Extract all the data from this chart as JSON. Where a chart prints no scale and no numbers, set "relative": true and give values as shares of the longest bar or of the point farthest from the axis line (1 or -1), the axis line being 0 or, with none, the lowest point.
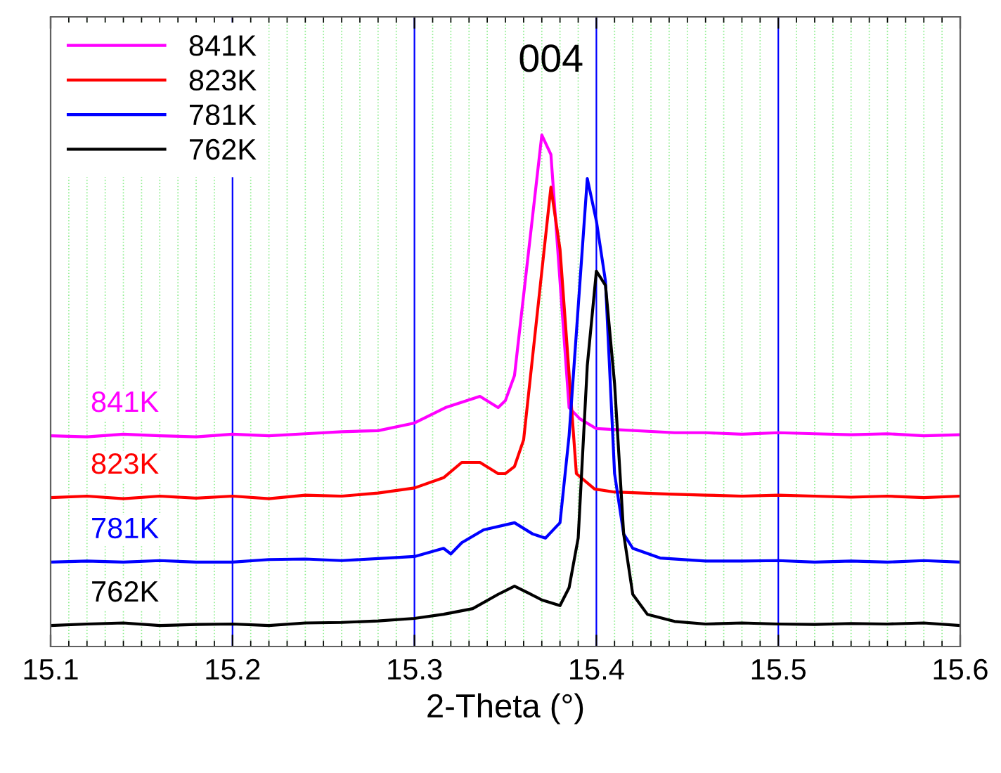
{
  "chart_data": {
    "type": "line",
    "relative": true,
    "xlabel": "2-Theta (°)",
    "xlim": [
      15.1,
      15.6
    ],
    "xticks": [
      15.1,
      {
        "value": 15.11,
        "label": null
      },
      {
        "value": 15.12,
        "label": null
      },
      {
        "value": 15.13,
        "label": null
      },
      {
        "value": 15.14,
        "label": null
      },
      {
        "value": 15.15,
        "label": null
      },
      {
        "value": 15.16,
        "label": null
      },
      {
        "value": 15.17,
        "label": null
      },
      {
        "value": 15.18,
        "label": null
      },
      {
        "value": 15.19,
        "label": null
      },
      15.2,
      {
        "value": 15.21,
        "label": null
      },
      {
        "value": 15.22,
        "label": null
      },
      {
        "value": 15.23,
        "label": null
      },
      {
        "value": 15.24,
        "label": null
      },
      {
        "value": 15.25,
        "label": null
      },
      {
        "value": 15.26,
        "label": null
      },
      {
        "value": 15.27,
        "label": null
      },
      {
        "value": 15.28,
        "label": null
      },
      {
        "value": 15.29,
        "label": null
      },
      15.3,
      {
        "value": 15.31,
        "label": null
      },
      {
        "value": 15.32,
        "label": null
      },
      {
        "value": 15.33,
        "label": null
      },
      {
        "value": 15.34,
        "label": null
      },
      {
        "value": 15.35,
        "label": null
      },
      {
        "value": 15.36,
        "label": null
      },
      {
        "value": 15.37,
        "label": null
      },
      {
        "value": 15.38,
        "label": null
      },
      {
        "value": 15.39,
        "label": null
      },
      15.4,
      {
        "value": 15.41,
        "label": null
      },
      {
        "value": 15.42,
        "label": null
      },
      {
        "value": 15.43,
        "label": null
      },
      {
        "value": 15.44,
        "label": null
      },
      {
        "value": 15.45,
        "label": null
      },
      {
        "value": 15.46,
        "label": null
      },
      {
        "value": 15.47,
        "label": null
      },
      {
        "value": 15.48,
        "label": null
      },
      {
        "value": 15.49,
        "label": null
      },
      15.5,
      {
        "value": 15.51,
        "label": null
      },
      {
        "value": 15.52,
        "label": null
      },
      {
        "value": 15.53,
        "label": null
      },
      {
        "value": 15.54,
        "label": null
      },
      {
        "value": 15.55,
        "label": null
      },
      {
        "value": 15.56,
        "label": null
      },
      {
        "value": 15.57,
        "label": null
      },
      {
        "value": 15.58,
        "label": null
      },
      {
        "value": 15.59,
        "label": null
      },
      15.6
    ],
    "tick_labels": "x",
    "grid": "x",
    "legend": "top left",
    "line_style": "solid",
    "marker": "none",
    "annotations": [
      "004"
    ],
    "series": [
      {
        "name": "841K",
        "color": "#ff00ff",
        "x": [
          15.1,
          15.12,
          15.14,
          15.16,
          15.18,
          15.2,
          15.22,
          15.24,
          15.26,
          15.28,
          15.3,
          15.317,
          15.336,
          15.346,
          15.35,
          15.355,
          15.37,
          15.375,
          15.385,
          15.391,
          15.4,
          15.443,
          15.46,
          15.48,
          15.5,
          15.52,
          15.54,
          15.56,
          15.58,
          15.6
        ],
        "values": [
          0.412,
          0.41,
          0.415,
          0.412,
          0.41,
          0.415,
          0.412,
          0.416,
          0.42,
          0.422,
          0.437,
          0.467,
          0.489,
          0.467,
          0.481,
          0.53,
          1.0,
          0.962,
          0.467,
          0.445,
          0.426,
          0.418,
          0.418,
          0.415,
          0.418,
          0.416,
          0.414,
          0.416,
          0.412,
          0.414
        ]
      },
      {
        "name": "823K",
        "color": "#ff0000",
        "x": [
          15.1,
          15.12,
          15.14,
          15.16,
          15.18,
          15.2,
          15.22,
          15.24,
          15.26,
          15.28,
          15.3,
          15.316,
          15.326,
          15.336,
          15.346,
          15.35,
          15.355,
          15.36,
          15.375,
          15.38,
          15.389,
          15.399,
          15.41,
          15.44,
          15.46,
          15.48,
          15.5,
          15.52,
          15.54,
          15.56,
          15.58,
          15.6
        ],
        "values": [
          0.291,
          0.294,
          0.289,
          0.294,
          0.29,
          0.294,
          0.289,
          0.296,
          0.294,
          0.3,
          0.31,
          0.33,
          0.36,
          0.36,
          0.338,
          0.338,
          0.352,
          0.404,
          0.898,
          0.777,
          0.338,
          0.308,
          0.302,
          0.298,
          0.296,
          0.294,
          0.296,
          0.294,
          0.292,
          0.294,
          0.291,
          0.294
        ]
      },
      {
        "name": "781K",
        "color": "#0000ff",
        "x": [
          15.1,
          15.12,
          15.14,
          15.16,
          15.18,
          15.2,
          15.22,
          15.24,
          15.26,
          15.28,
          15.3,
          15.316,
          15.32,
          15.326,
          15.338,
          15.355,
          15.365,
          15.372,
          15.38,
          15.385,
          15.395,
          15.4,
          15.405,
          15.41,
          15.415,
          15.42,
          15.435,
          15.46,
          15.48,
          15.5,
          15.52,
          15.54,
          15.56,
          15.58,
          15.6
        ],
        "values": [
          0.165,
          0.167,
          0.165,
          0.168,
          0.165,
          0.165,
          0.17,
          0.171,
          0.168,
          0.172,
          0.176,
          0.192,
          0.181,
          0.203,
          0.228,
          0.242,
          0.22,
          0.212,
          0.242,
          0.412,
          0.915,
          0.832,
          0.714,
          0.338,
          0.22,
          0.192,
          0.173,
          0.167,
          0.167,
          0.168,
          0.165,
          0.167,
          0.165,
          0.168,
          0.165
        ]
      },
      {
        "name": "762K",
        "color": "#000000",
        "x": [
          15.1,
          15.12,
          15.14,
          15.16,
          15.18,
          15.2,
          15.22,
          15.24,
          15.26,
          15.28,
          15.3,
          15.316,
          15.332,
          15.346,
          15.355,
          15.363,
          15.37,
          15.38,
          15.385,
          15.39,
          15.395,
          15.4,
          15.405,
          15.41,
          15.415,
          15.42,
          15.428,
          15.443,
          15.46,
          15.48,
          15.5,
          15.52,
          15.54,
          15.56,
          15.58,
          15.6
        ],
        "values": [
          0.041,
          0.044,
          0.046,
          0.041,
          0.043,
          0.044,
          0.041,
          0.046,
          0.047,
          0.05,
          0.055,
          0.063,
          0.074,
          0.102,
          0.118,
          0.104,
          0.091,
          0.08,
          0.115,
          0.212,
          0.549,
          0.734,
          0.706,
          0.514,
          0.22,
          0.102,
          0.063,
          0.049,
          0.044,
          0.046,
          0.044,
          0.043,
          0.045,
          0.044,
          0.046,
          0.041
        ]
      }
    ]
  }
}
